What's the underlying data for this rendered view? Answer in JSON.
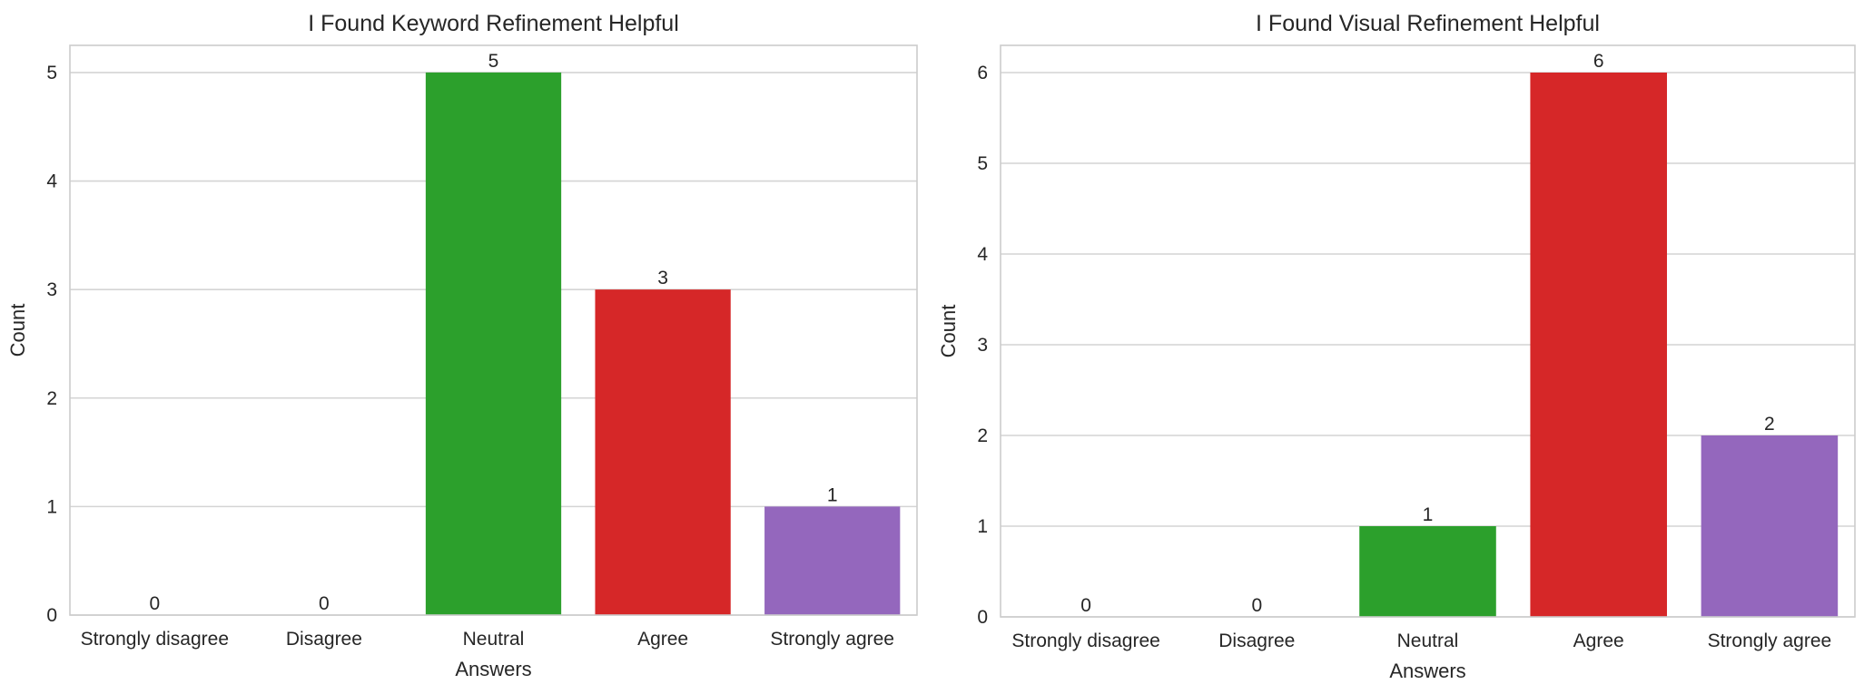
{
  "chart_data": [
    {
      "type": "bar",
      "title": "I Found Keyword Refinement Helpful",
      "xlabel": "Answers",
      "ylabel": "Count",
      "categories": [
        "Strongly disagree",
        "Disagree",
        "Neutral",
        "Agree",
        "Strongly agree"
      ],
      "values": [
        0,
        0,
        5,
        3,
        1
      ],
      "colors": [
        "#1f77b4",
        "#ff7f0e",
        "#2ca02c",
        "#d62728",
        "#9467bd"
      ],
      "ylim": [
        0,
        5.25
      ],
      "yticks": [
        0,
        1,
        2,
        3,
        4,
        5
      ],
      "grid": true
    },
    {
      "type": "bar",
      "title": "I Found Visual Refinement Helpful",
      "xlabel": "Answers",
      "ylabel": "Count",
      "categories": [
        "Strongly disagree",
        "Disagree",
        "Neutral",
        "Agree",
        "Strongly agree"
      ],
      "values": [
        0,
        0,
        1,
        6,
        2
      ],
      "colors": [
        "#1f77b4",
        "#ff7f0e",
        "#2ca02c",
        "#d62728",
        "#9467bd"
      ],
      "ylim": [
        0,
        6.3
      ],
      "yticks": [
        0,
        1,
        2,
        3,
        4,
        5,
        6
      ],
      "grid": true
    }
  ]
}
